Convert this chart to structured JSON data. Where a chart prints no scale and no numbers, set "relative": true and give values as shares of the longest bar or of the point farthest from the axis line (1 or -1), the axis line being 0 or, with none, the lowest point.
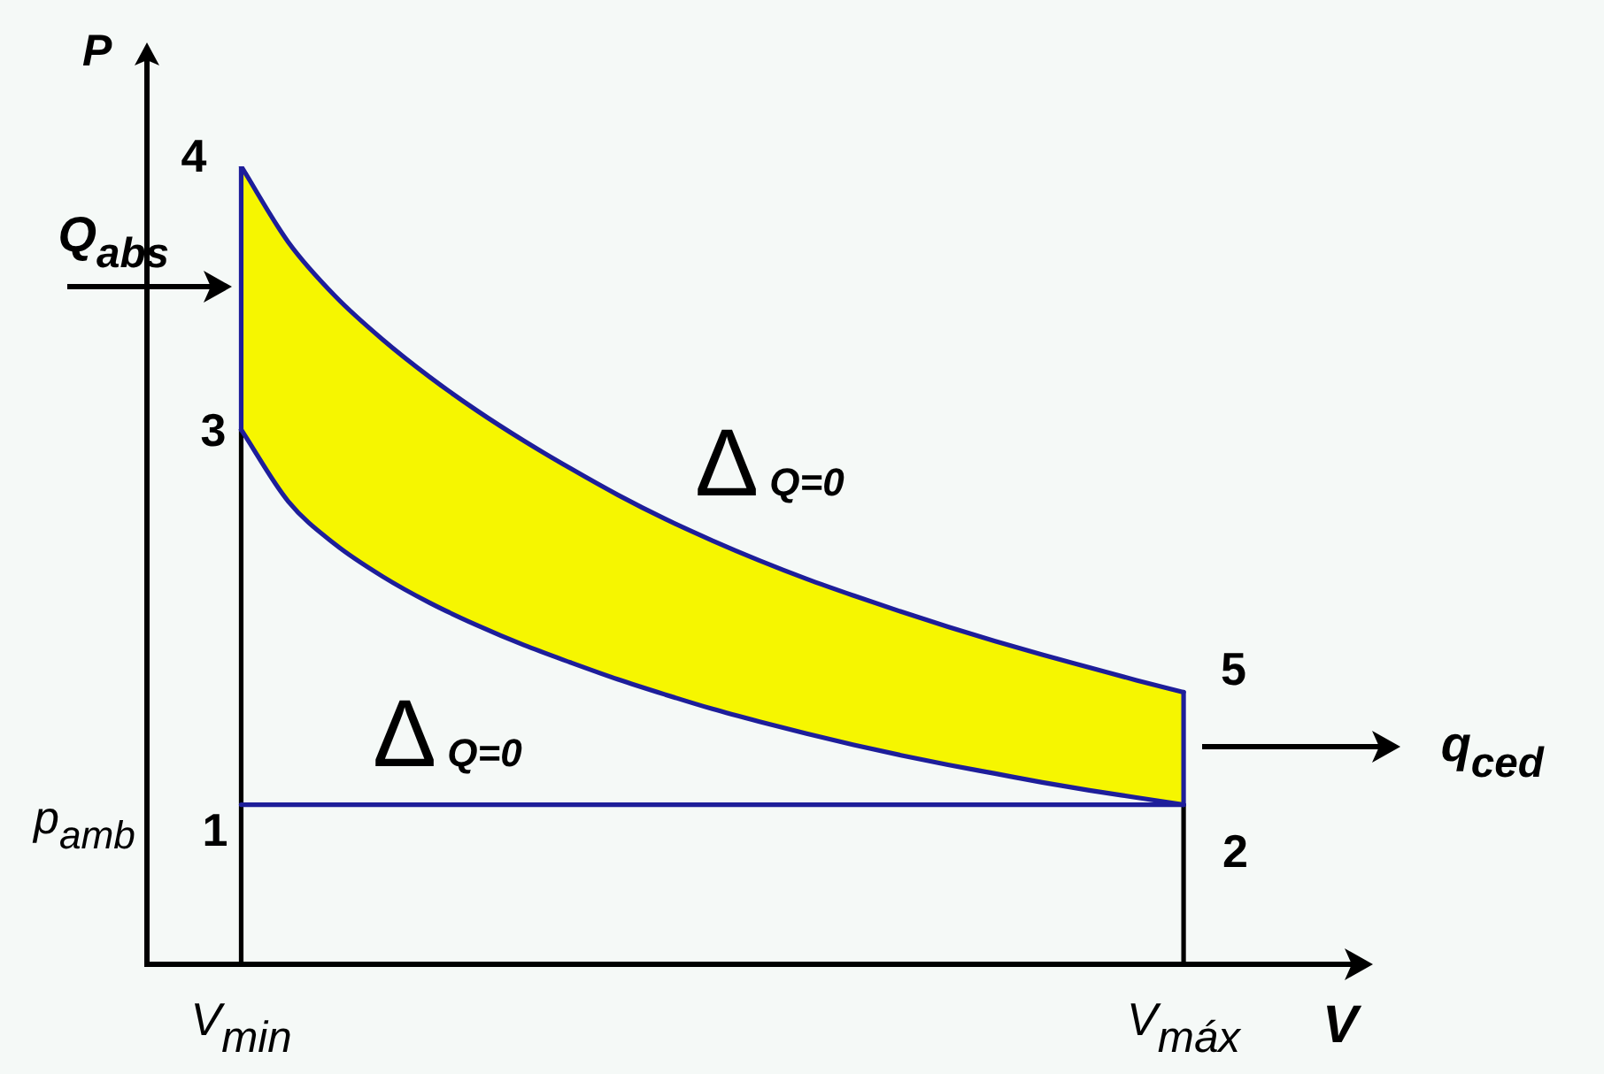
{
  "chart_data": {
    "type": "line",
    "relative": true,
    "xlabel": "V",
    "ylabel": "P",
    "tick_labels": "x",
    "categories": [
      null,
      null,
      "V$_{min}$",
      null,
      null,
      null,
      null,
      null,
      null,
      null,
      null,
      null,
      null,
      null,
      null,
      null,
      null,
      null,
      null,
      null,
      null,
      null,
      "V$_{máx}$",
      null,
      null,
      null,
      null
    ],
    "series": [
      {
        "color": "#1e1e9a",
        "values": [
          null,
          null,
          0.67,
          0.58,
          0.526,
          0.486,
          0.453,
          0.425,
          0.4,
          0.378,
          0.357,
          0.338,
          0.32,
          0.304,
          0.289,
          0.275,
          0.262,
          0.25,
          0.239,
          0.228,
          0.218,
          0.209,
          0.2,
          null,
          null,
          null,
          null
        ]
      },
      {
        "type": "area",
        "color": "#f6f600",
        "values": [
          null,
          null,
          1,
          0.905,
          0.837,
          0.783,
          0.736,
          0.694,
          0.656,
          0.621,
          0.588,
          0.558,
          0.531,
          0.506,
          0.483,
          0.462,
          0.442,
          0.423,
          0.405,
          0.388,
          0.372,
          0.356,
          0.341,
          null,
          null,
          null,
          null
        ]
      },
      {
        "color": "#1e1e9a",
        "values": [
          null,
          null,
          1,
          0.905,
          0.837,
          0.783,
          0.736,
          0.694,
          0.656,
          0.621,
          0.588,
          0.558,
          0.531,
          0.506,
          0.483,
          0.462,
          0.442,
          0.423,
          0.405,
          0.388,
          0.372,
          0.356,
          0.341,
          null,
          null,
          null,
          null
        ]
      },
      {
        "color": "#1e1e9a",
        "values": [
          null,
          null,
          0.2,
          0.2,
          0.2,
          0.2,
          0.2,
          0.2,
          0.2,
          0.2,
          0.2,
          0.2,
          0.2,
          0.2,
          0.2,
          0.2,
          0.2,
          0.2,
          0.2,
          0.2,
          0.2,
          0.2,
          0.2,
          null,
          null,
          null,
          null
        ]
      },
      {
        "color": "#1e1e9a",
        "x": [
          "V$_{min}$",
          "V$_{min}$"
        ],
        "values": [
          0.67,
          1
        ]
      },
      {
        "color": "#1e1e9a",
        "x": [
          "V$_{máx}$",
          "V$_{máx}$"
        ],
        "values": [
          0.341,
          0.2
        ]
      },
      {
        "color": "#000000",
        "x": [
          "V$_{min}$",
          "V$_{min}$"
        ],
        "values": [
          0,
          0.67
        ]
      },
      {
        "color": "#000000",
        "x": [
          "V$_{máx}$",
          "V$_{máx}$"
        ],
        "values": [
          0,
          0.2
        ]
      }
    ],
    "annotations": [
      {
        "text": "4",
        "x": "V$_{min}$",
        "y": 1
      },
      {
        "text": "3",
        "x": "V$_{min}$",
        "y": 0.67
      },
      {
        "text": "1",
        "x": "V$_{min}$",
        "y": 0.2
      },
      {
        "text": "5",
        "x": "V$_{máx}$",
        "y": 0.341
      },
      {
        "text": "2",
        "x": "V$_{máx}$",
        "y": 0.2
      },
      {
        "text": "Q$_{abs}$",
        "x": "V$_{min}$",
        "y": 0.85
      },
      "q$_{ced}$",
      "p$_{amb}$",
      "ΔQ=0",
      "ΔQ=0"
    ]
  }
}
